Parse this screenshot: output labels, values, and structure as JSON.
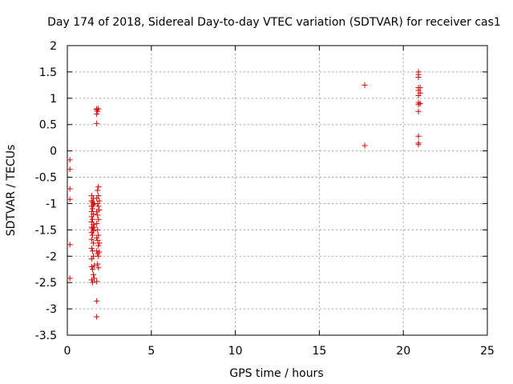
{
  "chart_data": {
    "type": "scatter",
    "title": "Day 174 of 2018, Sidereal Day-to-day VTEC variation (SDTVAR) for receiver cas1",
    "xlabel": "GPS time / hours",
    "ylabel": "SDTVAR / TECUs",
    "xlim": [
      0,
      25
    ],
    "ylim": [
      -3.5,
      2
    ],
    "xticks": [
      0,
      5,
      10,
      15,
      20,
      25
    ],
    "xtick_labels": [
      "0",
      "5",
      "10",
      "15",
      "20",
      "25"
    ],
    "yticks": [
      -3.5,
      -3,
      -2.5,
      -2,
      -1.5,
      -1,
      -0.5,
      0,
      0.5,
      1,
      1.5,
      2
    ],
    "ytick_labels": [
      "-3.5",
      "-3",
      "-2.5",
      "-2",
      "-1.5",
      "-1",
      "-0.5",
      "0",
      "0.5",
      "1",
      "1.5",
      "2"
    ],
    "grid": true,
    "marker": "+",
    "color": "#e00000",
    "series": [
      {
        "name": "SDTVAR",
        "points": [
          [
            0.15,
            -0.17
          ],
          [
            0.15,
            -0.35
          ],
          [
            0.15,
            -0.72
          ],
          [
            0.15,
            -0.92
          ],
          [
            0.15,
            -1.78
          ],
          [
            0.15,
            -2.42
          ],
          [
            1.45,
            -0.85
          ],
          [
            1.45,
            -0.95
          ],
          [
            1.45,
            -1.05
          ],
          [
            1.45,
            -1.15
          ],
          [
            1.45,
            -1.25
          ],
          [
            1.45,
            -1.35
          ],
          [
            1.45,
            -1.45
          ],
          [
            1.45,
            -1.55
          ],
          [
            1.45,
            -1.68
          ],
          [
            1.45,
            -1.85
          ],
          [
            1.45,
            -2.05
          ],
          [
            1.45,
            -2.2
          ],
          [
            1.45,
            -2.45
          ],
          [
            1.5,
            -0.98
          ],
          [
            1.5,
            -1.1
          ],
          [
            1.5,
            -1.3
          ],
          [
            1.5,
            -1.48
          ],
          [
            1.5,
            -1.6
          ],
          [
            1.5,
            -1.9
          ],
          [
            1.5,
            -2.25
          ],
          [
            1.5,
            -2.5
          ],
          [
            1.55,
            -0.9
          ],
          [
            1.55,
            -1.02
          ],
          [
            1.55,
            -1.2
          ],
          [
            1.55,
            -1.4
          ],
          [
            1.55,
            -1.52
          ],
          [
            1.55,
            -1.75
          ],
          [
            1.55,
            -2.0
          ],
          [
            1.55,
            -2.35
          ],
          [
            1.6,
            -1.0
          ],
          [
            1.6,
            -1.45
          ],
          [
            1.6,
            -2.18
          ],
          [
            1.6,
            -2.42
          ],
          [
            1.75,
            0.8
          ],
          [
            1.75,
            0.78
          ],
          [
            1.75,
            0.7
          ],
          [
            1.75,
            0.52
          ],
          [
            1.75,
            -0.9
          ],
          [
            1.75,
            -1.15
          ],
          [
            1.75,
            -1.38
          ],
          [
            1.75,
            -1.65
          ],
          [
            1.75,
            -1.9
          ],
          [
            1.75,
            -2.48
          ],
          [
            1.75,
            -2.85
          ],
          [
            1.75,
            -3.15
          ],
          [
            1.8,
            0.75
          ],
          [
            1.8,
            -0.75
          ],
          [
            1.8,
            -1.0
          ],
          [
            1.8,
            -1.22
          ],
          [
            1.8,
            -1.5
          ],
          [
            1.8,
            -1.7
          ],
          [
            1.8,
            -1.95
          ],
          [
            1.8,
            -2.15
          ],
          [
            1.85,
            0.8
          ],
          [
            1.85,
            -0.68
          ],
          [
            1.85,
            -0.85
          ],
          [
            1.85,
            -1.05
          ],
          [
            1.85,
            -1.3
          ],
          [
            1.85,
            -1.6
          ],
          [
            1.85,
            -1.8
          ],
          [
            1.85,
            -2.0
          ],
          [
            1.85,
            -2.22
          ],
          [
            1.9,
            -0.95
          ],
          [
            1.9,
            -1.12
          ],
          [
            1.9,
            -1.75
          ],
          [
            1.9,
            -1.92
          ],
          [
            17.7,
            1.25
          ],
          [
            17.7,
            0.1
          ],
          [
            20.9,
            1.5
          ],
          [
            20.9,
            1.45
          ],
          [
            20.9,
            1.4
          ],
          [
            20.9,
            1.2
          ],
          [
            20.9,
            1.15
          ],
          [
            20.9,
            1.05
          ],
          [
            20.9,
            0.92
          ],
          [
            20.9,
            0.88
          ],
          [
            20.9,
            0.75
          ],
          [
            20.9,
            0.28
          ],
          [
            20.9,
            0.15
          ],
          [
            20.9,
            0.12
          ],
          [
            21.0,
            1.2
          ],
          [
            21.0,
            1.1
          ],
          [
            21.0,
            0.9
          ]
        ]
      }
    ]
  }
}
